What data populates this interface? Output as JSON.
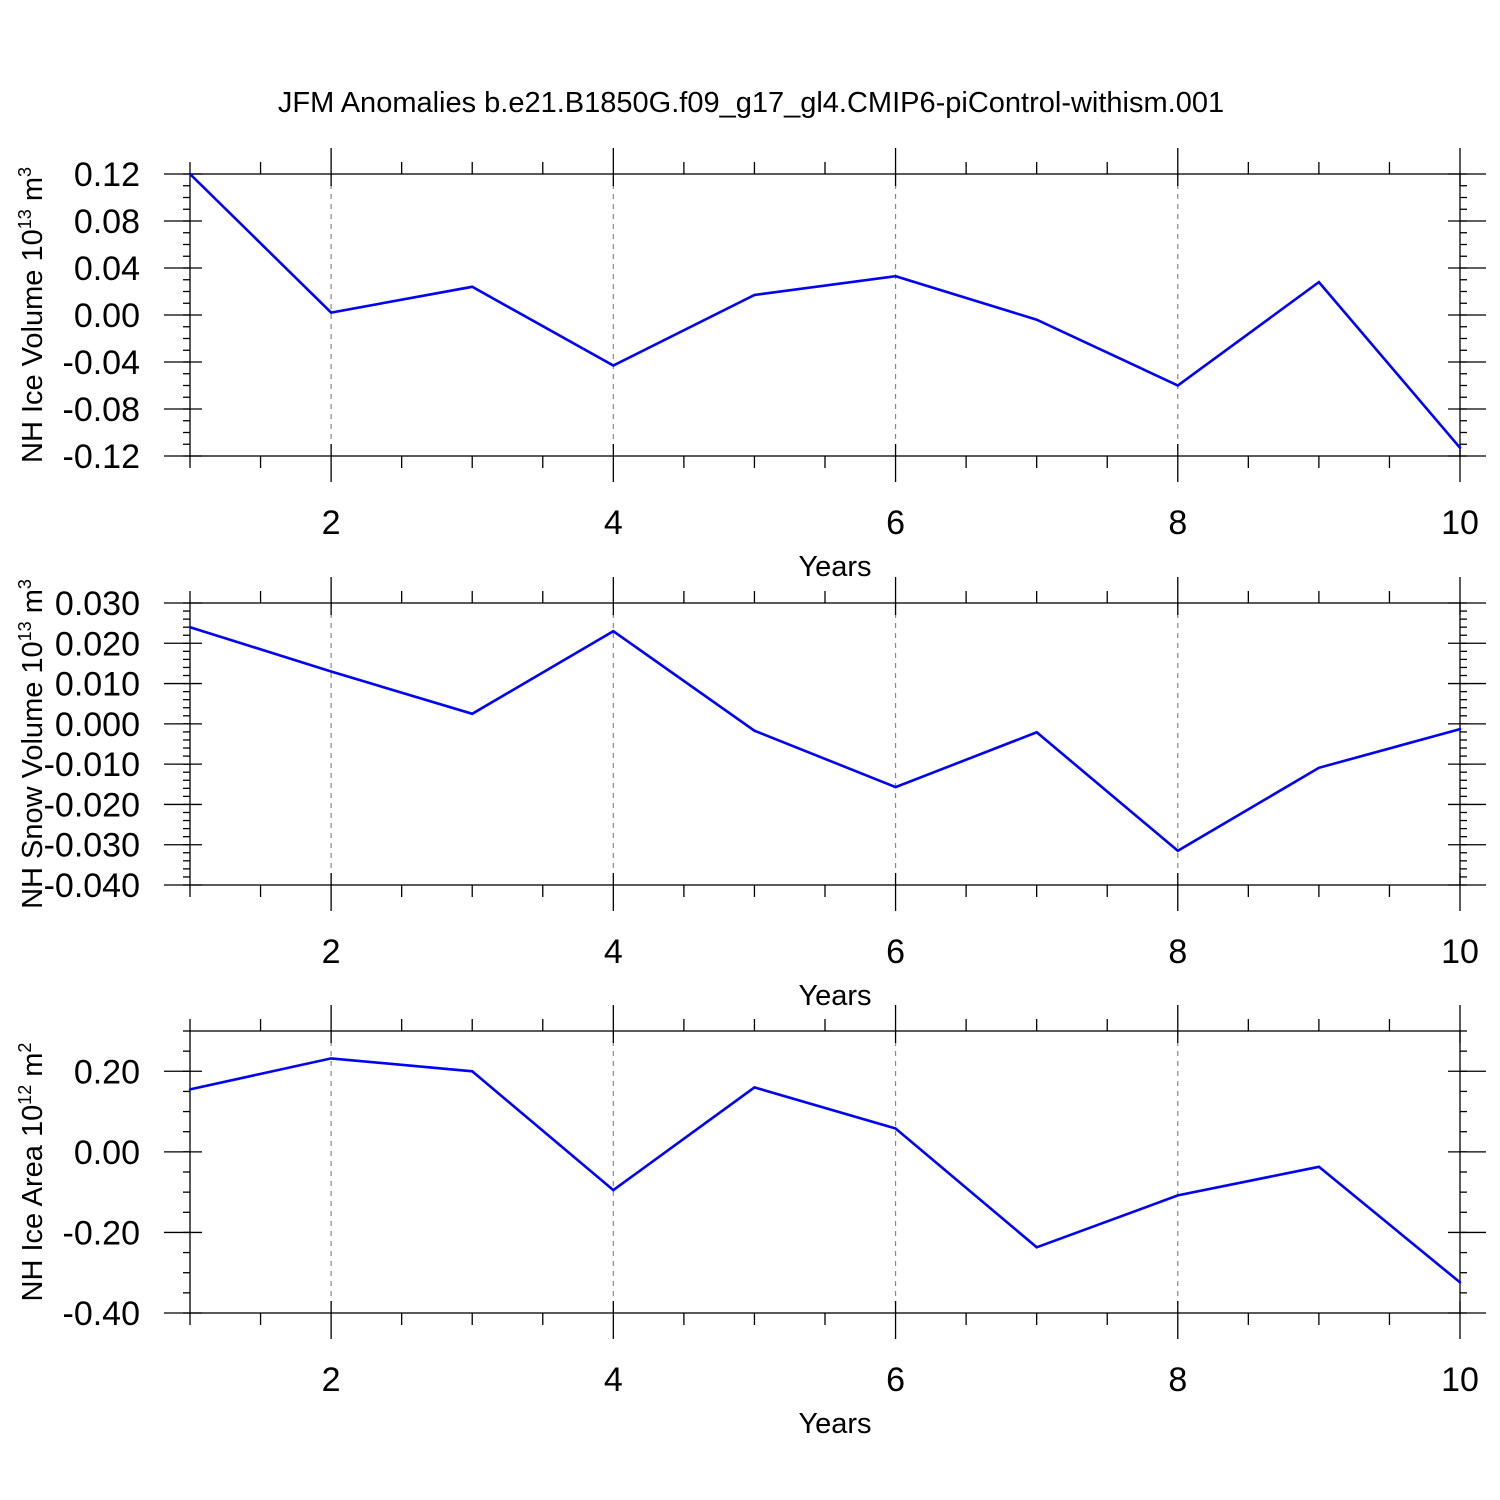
{
  "title": "JFM Anomalies b.e21.B1850G.f09_g17_gl4.CMIP6-piControl-withism.001",
  "colors": {
    "line": "#0000ff",
    "grid": "#888888",
    "axis": "#000000"
  },
  "chart_data": [
    {
      "type": "line",
      "id": "ice-volume",
      "ylabel": {
        "base": "NH Ice Volume 10",
        "sup": "13",
        "unit": " m",
        "unit_sup": "3"
      },
      "xlabel": "Years",
      "xlim": [
        1,
        10
      ],
      "ylim": [
        -0.12,
        0.12
      ],
      "xticks": [
        2,
        4,
        6,
        8,
        10
      ],
      "xtick_labels": [
        "2",
        "4",
        "6",
        "8",
        "10"
      ],
      "yticks": [
        0.12,
        0.08,
        0.04,
        0.0,
        -0.04,
        -0.08,
        -0.12
      ],
      "ytick_labels": [
        "0.12",
        "0.08",
        "0.04",
        "0.00",
        "-0.04",
        "-0.08",
        "-0.12"
      ],
      "yminor_step": 0.01,
      "x": [
        1,
        2,
        3,
        4,
        5,
        6,
        7,
        8,
        9,
        10
      ],
      "values": [
        0.12,
        0.002,
        0.024,
        -0.043,
        0.017,
        0.033,
        -0.004,
        -0.06,
        0.028,
        -0.113
      ]
    },
    {
      "type": "line",
      "id": "snow-volume",
      "ylabel": {
        "base": "NH Snow Volume 10",
        "sup": "13",
        "unit": " m",
        "unit_sup": "3"
      },
      "xlabel": "Years",
      "xlim": [
        1,
        10
      ],
      "ylim": [
        -0.04,
        0.03
      ],
      "xticks": [
        2,
        4,
        6,
        8,
        10
      ],
      "xtick_labels": [
        "2",
        "4",
        "6",
        "8",
        "10"
      ],
      "yticks": [
        0.03,
        0.02,
        0.01,
        0.0,
        -0.01,
        -0.02,
        -0.03,
        -0.04
      ],
      "ytick_labels": [
        "0.030",
        "0.020",
        "0.010",
        "0.000",
        "-0.010",
        "-0.020",
        "-0.030",
        "-0.040"
      ],
      "yminor_step": 0.002,
      "x": [
        1,
        2,
        3,
        4,
        5,
        6,
        7,
        8,
        9,
        10
      ],
      "values": [
        0.024,
        0.013,
        0.0025,
        0.023,
        -0.0017,
        -0.0157,
        -0.0021,
        -0.0315,
        -0.0109,
        -0.0013
      ]
    },
    {
      "type": "line",
      "id": "ice-area",
      "ylabel": {
        "base": "NH Ice Area 10",
        "sup": "12",
        "unit": " m",
        "unit_sup": "2"
      },
      "xlabel": "Years",
      "xlim": [
        1,
        10
      ],
      "ylim": [
        -0.4,
        0.3
      ],
      "xticks": [
        2,
        4,
        6,
        8,
        10
      ],
      "xtick_labels": [
        "2",
        "4",
        "6",
        "8",
        "10"
      ],
      "yticks": [
        0.2,
        0.0,
        -0.2,
        -0.4
      ],
      "ytick_labels": [
        "0.20",
        "0.00",
        "-0.20",
        "-0.40"
      ],
      "yminor_step": 0.05,
      "x": [
        1,
        2,
        3,
        4,
        5,
        6,
        7,
        8,
        9,
        10
      ],
      "values": [
        0.155,
        0.232,
        0.2,
        -0.095,
        0.16,
        0.058,
        -0.237,
        -0.108,
        -0.037,
        -0.324
      ]
    }
  ]
}
